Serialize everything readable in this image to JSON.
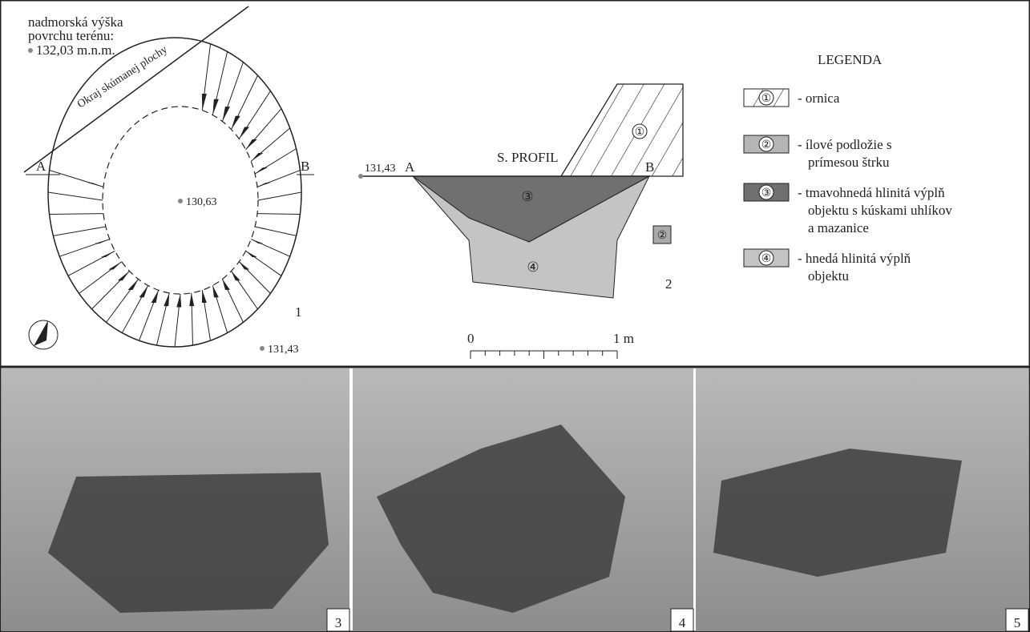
{
  "plan": {
    "elevation_label": [
      "nadmorská výška",
      "povrchu terénu:"
    ],
    "elevation": "132,03 m.n.m.",
    "edge_label": "Okraj skúmanej plochy",
    "section_start": "A",
    "section_end": "B",
    "bottom_elevation": "130,63",
    "number": "1",
    "outside_elevation": "131,43"
  },
  "profile": {
    "title": "S. PROFIL",
    "elevation": "131,43",
    "section_start": "A",
    "section_end": "B",
    "layers": [
      "①",
      "③",
      "④"
    ],
    "sample": "②",
    "number": "2",
    "scale_start": "0",
    "scale_end": "1 m"
  },
  "legend": {
    "title": "LEGENDA",
    "items": [
      {
        "symbol": "①",
        "lines": [
          "- ornica"
        ]
      },
      {
        "symbol": "②",
        "lines": [
          "- ílové podložie s",
          "prímesou štrku"
        ]
      },
      {
        "symbol": "③",
        "lines": [
          "- tmavohnedá hlinitá výplň",
          "objektu s kúskami uhlíkov",
          "a mazanice"
        ]
      },
      {
        "symbol": "④",
        "lines": [
          "- hnedá hlinitá výplň",
          "objektu"
        ]
      }
    ]
  },
  "photos": [
    {
      "number": "3"
    },
    {
      "number": "4"
    },
    {
      "number": "5"
    }
  ]
}
